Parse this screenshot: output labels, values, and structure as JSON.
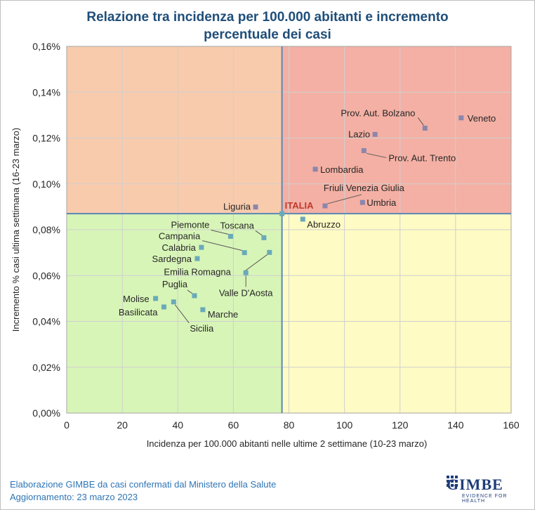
{
  "title_line1": "Relazione tra incidenza per 100.000 abitanti e incremento",
  "title_line2": "percentuale dei casi",
  "footer_line1": "Elaborazione GIMBE da casi confermati dal Ministero della Salute",
  "footer_line2": "Aggiornamento: 23 marzo 2023",
  "logo_text": "GIMBE",
  "logo_sub": "EVIDENCE FOR HEALTH",
  "colors": {
    "q_top_left": "#f8cbad",
    "q_top_right": "#f4b0a4",
    "q_bottom_left": "#d8f5b8",
    "q_bottom_right": "#fffbc4",
    "refline": "#5b87b5",
    "point_above": "#8b86ac",
    "point_below": "#6aaab8",
    "title": "#1f4e79"
  },
  "chart_data": {
    "type": "scatter",
    "xlabel": "Incidenza per 100.000 abitanti nelle ultime 2 settimane (10-23 marzo)",
    "ylabel": "Incremento % casi ultima settimana (16-23 marzo)",
    "xlim": [
      0,
      160
    ],
    "ylim": [
      0,
      0.16
    ],
    "xticks": [
      0,
      20,
      40,
      60,
      80,
      100,
      120,
      140,
      160
    ],
    "yticks": [
      0,
      0.02,
      0.04,
      0.06,
      0.08,
      0.1,
      0.12,
      0.14,
      0.16
    ],
    "ytick_labels": [
      "0,00%",
      "0,02%",
      "0,04%",
      "0,06%",
      "0,08%",
      "0,10%",
      "0,12%",
      "0,14%",
      "0,16%"
    ],
    "reference": {
      "name": "ITALIA",
      "x": 77.5,
      "y": 0.087
    },
    "points": [
      {
        "name": "Veneto",
        "x": 142,
        "y": 0.1288
      },
      {
        "name": "Prov. Aut. Bolzano",
        "x": 129,
        "y": 0.1243
      },
      {
        "name": "Lazio",
        "x": 111,
        "y": 0.1216
      },
      {
        "name": "Prov. Aut. Trento",
        "x": 107,
        "y": 0.1145
      },
      {
        "name": "Lombardia",
        "x": 89.5,
        "y": 0.1064
      },
      {
        "name": "Friuli Venezia Giulia",
        "x": 93,
        "y": 0.0904
      },
      {
        "name": "Umbria",
        "x": 106.5,
        "y": 0.0919
      },
      {
        "name": "Liguria",
        "x": 68,
        "y": 0.0899
      },
      {
        "name": "Abruzzo",
        "x": 85,
        "y": 0.0846
      },
      {
        "name": "Toscana",
        "x": 71,
        "y": 0.0765
      },
      {
        "name": "Piemonte",
        "x": 59,
        "y": 0.0771
      },
      {
        "name": "Campania",
        "x": 64,
        "y": 0.07
      },
      {
        "name": "Calabria",
        "x": 48.5,
        "y": 0.0723
      },
      {
        "name": "Emilia Romagna",
        "x": 73,
        "y": 0.0701
      },
      {
        "name": "Sardegna",
        "x": 47,
        "y": 0.0674
      },
      {
        "name": "Valle D'Aosta",
        "x": 64.5,
        "y": 0.0612
      },
      {
        "name": "Puglia",
        "x": 46,
        "y": 0.0512
      },
      {
        "name": "Molise",
        "x": 32,
        "y": 0.05
      },
      {
        "name": "Basilicata",
        "x": 35,
        "y": 0.0463
      },
      {
        "name": "Sicilia",
        "x": 38.5,
        "y": 0.0485
      },
      {
        "name": "Marche",
        "x": 49,
        "y": 0.0451
      }
    ]
  }
}
